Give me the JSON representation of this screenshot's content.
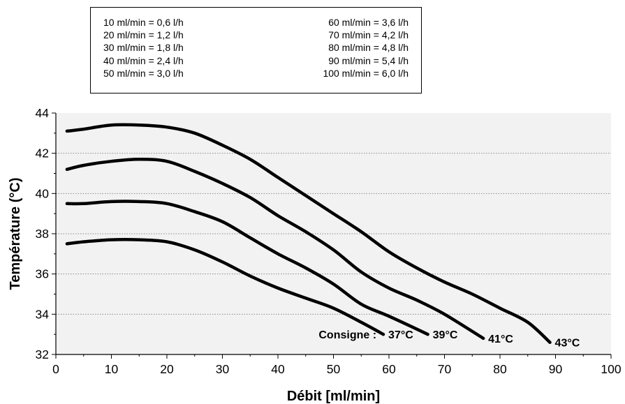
{
  "legend": {
    "left": [
      "10 ml/min = 0,6 l/h",
      "20 ml/min = 1,2 l/h",
      "30 ml/min = 1,8 l/h",
      "40 ml/min = 2,4 l/h",
      "50 ml/min = 3,0 l/h"
    ],
    "right": [
      "60 ml/min = 3,6 l/h",
      "70 ml/min = 4,2 l/h",
      "80 ml/min = 4,8 l/h",
      "90 ml/min = 5,4 l/h",
      "100 ml/min = 6,0 l/h"
    ]
  },
  "chart_data": {
    "type": "line",
    "xlabel": "Débit [ml/min]",
    "ylabel": "Température (°C)",
    "xlim": [
      0,
      100
    ],
    "ylim": [
      32,
      44
    ],
    "xticks": [
      "0",
      "10",
      "20",
      "30",
      "40",
      "50",
      "60",
      "70",
      "80",
      "90",
      "100"
    ],
    "yticks": [
      "32",
      "34",
      "36",
      "38",
      "40",
      "42",
      "44"
    ],
    "grid": "horizontal dotted",
    "annotation": "Consigne :",
    "line_color": "#000000",
    "plot_background": "#f2f2f2",
    "series": [
      {
        "name": "37°C",
        "x": [
          2,
          5,
          10,
          15,
          20,
          25,
          30,
          35,
          40,
          45,
          50,
          55,
          59
        ],
        "y": [
          37.5,
          37.6,
          37.7,
          37.7,
          37.6,
          37.2,
          36.6,
          35.9,
          35.3,
          34.8,
          34.3,
          33.6,
          33.0
        ]
      },
      {
        "name": "39°C",
        "x": [
          2,
          5,
          10,
          15,
          20,
          25,
          30,
          35,
          40,
          45,
          50,
          55,
          60,
          67
        ],
        "y": [
          39.5,
          39.5,
          39.6,
          39.6,
          39.5,
          39.1,
          38.6,
          37.8,
          37.0,
          36.3,
          35.5,
          34.5,
          33.9,
          33.0
        ]
      },
      {
        "name": "41°C",
        "x": [
          2,
          5,
          10,
          15,
          20,
          25,
          30,
          35,
          40,
          45,
          50,
          55,
          60,
          65,
          70,
          77
        ],
        "y": [
          41.2,
          41.4,
          41.6,
          41.7,
          41.6,
          41.1,
          40.5,
          39.8,
          38.9,
          38.1,
          37.2,
          36.1,
          35.3,
          34.7,
          34.0,
          32.8
        ]
      },
      {
        "name": "43°C",
        "x": [
          2,
          5,
          10,
          15,
          20,
          25,
          30,
          35,
          40,
          45,
          50,
          55,
          60,
          65,
          70,
          75,
          80,
          85,
          89
        ],
        "y": [
          43.1,
          43.2,
          43.4,
          43.4,
          43.3,
          43.0,
          42.4,
          41.7,
          40.8,
          39.9,
          39.0,
          38.1,
          37.1,
          36.3,
          35.6,
          35.0,
          34.3,
          33.6,
          32.6
        ]
      }
    ]
  }
}
